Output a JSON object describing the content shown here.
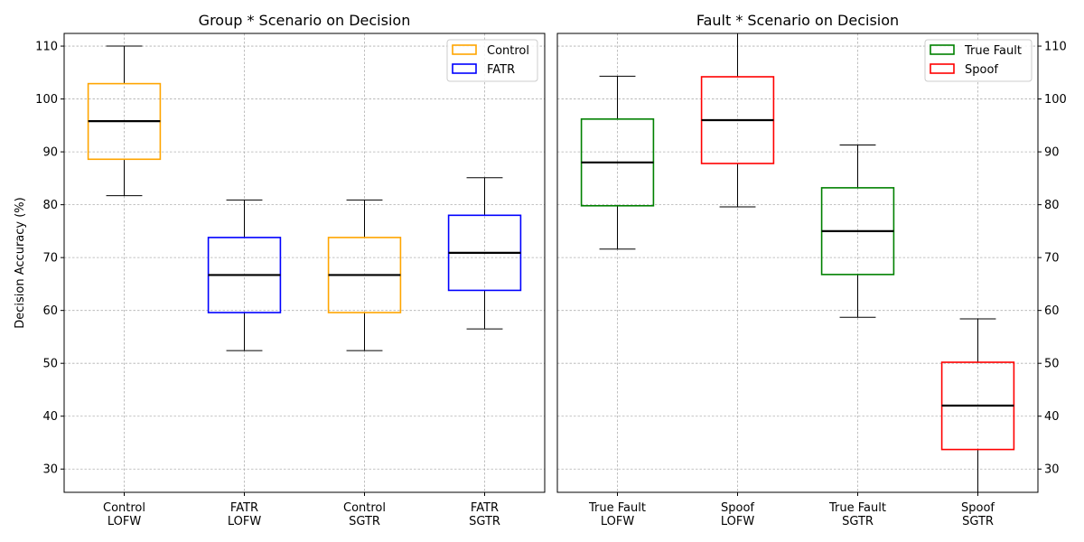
{
  "chart_data": [
    {
      "type": "box",
      "title": "Group * Scenario on Decision",
      "ylabel": "Decision Accuracy (%)",
      "ylim": [
        25.6,
        112.4
      ],
      "yticks": [
        30,
        40,
        50,
        60,
        70,
        80,
        90,
        100,
        110
      ],
      "y_axis_side": "left",
      "grid": true,
      "legend_position": "top-right",
      "legend": [
        {
          "label": "Control",
          "color": "#FFA500"
        },
        {
          "label": "FATR",
          "color": "#0000FF"
        }
      ],
      "boxes": [
        {
          "label_lines": [
            "Control",
            "LOFW"
          ],
          "color": "#FFA500",
          "whisker_low": 81.7,
          "q1": 88.6,
          "median": 95.8,
          "q3": 102.9,
          "whisker_high": 110.0
        },
        {
          "label_lines": [
            "FATR",
            "LOFW"
          ],
          "color": "#0000FF",
          "whisker_low": 52.4,
          "q1": 59.6,
          "median": 66.7,
          "q3": 73.8,
          "whisker_high": 80.9
        },
        {
          "label_lines": [
            "Control",
            "SGTR"
          ],
          "color": "#FFA500",
          "whisker_low": 52.4,
          "q1": 59.6,
          "median": 66.7,
          "q3": 73.8,
          "whisker_high": 80.9
        },
        {
          "label_lines": [
            "FATR",
            "SGTR"
          ],
          "color": "#0000FF",
          "whisker_low": 56.5,
          "q1": 63.8,
          "median": 70.9,
          "q3": 78.0,
          "whisker_high": 85.1
        }
      ]
    },
    {
      "type": "box",
      "title": "Fault * Scenario on Decision",
      "ylabel": "",
      "ylim": [
        25.6,
        112.4
      ],
      "yticks": [
        30,
        40,
        50,
        60,
        70,
        80,
        90,
        100,
        110
      ],
      "y_axis_side": "right",
      "grid": true,
      "legend_position": "top-right",
      "legend": [
        {
          "label": "True Fault",
          "color": "#008000"
        },
        {
          "label": "Spoof",
          "color": "#FF0000"
        }
      ],
      "boxes": [
        {
          "label_lines": [
            "True Fault",
            "LOFW"
          ],
          "color": "#008000",
          "whisker_low": 71.6,
          "q1": 79.8,
          "median": 88.0,
          "q3": 96.2,
          "whisker_high": 104.3
        },
        {
          "label_lines": [
            "Spoof",
            "LOFW"
          ],
          "color": "#FF0000",
          "whisker_low": 79.6,
          "q1": 87.8,
          "median": 96.0,
          "q3": 104.2,
          "whisker_high": 112.4
        },
        {
          "label_lines": [
            "True Fault",
            "SGTR"
          ],
          "color": "#008000",
          "whisker_low": 58.7,
          "q1": 66.8,
          "median": 75.0,
          "q3": 83.2,
          "whisker_high": 91.3
        },
        {
          "label_lines": [
            "Spoof",
            "SGTR"
          ],
          "color": "#FF0000",
          "whisker_low": 25.6,
          "q1": 33.7,
          "median": 42.0,
          "q3": 50.2,
          "whisker_high": 58.4
        }
      ]
    }
  ]
}
